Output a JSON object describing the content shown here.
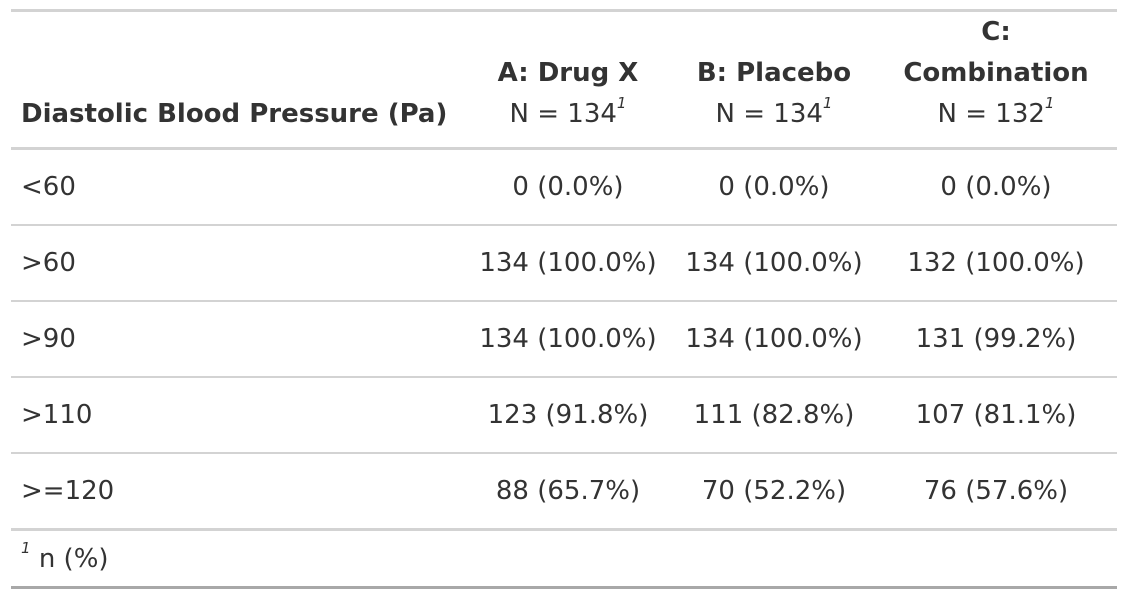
{
  "table": {
    "stub_header": "Diastolic Blood Pressure (Pa)",
    "columns": [
      {
        "name": "A: Drug X",
        "n_label": "N = 134",
        "footnote_mark": "1"
      },
      {
        "name": "B: Placebo",
        "n_label": "N = 134",
        "footnote_mark": "1"
      },
      {
        "name": "C: Combination",
        "n_label": "N = 132",
        "footnote_mark": "1"
      }
    ],
    "rows": [
      {
        "label": "<60",
        "values": [
          "0 (0.0%)",
          "0 (0.0%)",
          "0 (0.0%)"
        ]
      },
      {
        "label": ">60",
        "values": [
          "134 (100.0%)",
          "134 (100.0%)",
          "132 (100.0%)"
        ]
      },
      {
        "label": ">90",
        "values": [
          "134 (100.0%)",
          "134 (100.0%)",
          "131 (99.2%)"
        ]
      },
      {
        "label": ">110",
        "values": [
          "123 (91.8%)",
          "111 (82.8%)",
          "107 (81.1%)"
        ]
      },
      {
        "label": ">=120",
        "values": [
          "88 (65.7%)",
          "70 (52.2%)",
          "76 (57.6%)"
        ]
      }
    ],
    "footnote": {
      "mark": "1",
      "text": "n (%)"
    }
  }
}
